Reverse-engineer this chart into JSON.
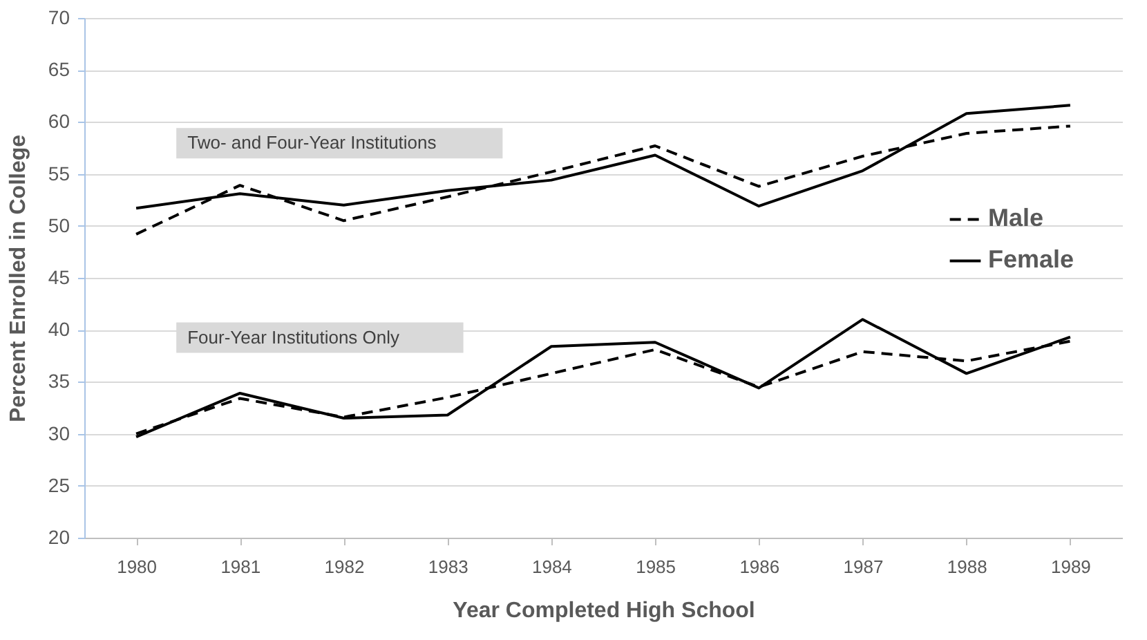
{
  "chart_data": {
    "type": "line",
    "xlabel": "Year Completed High School",
    "ylabel": "Percent Enrolled in College",
    "categories": [
      "1980",
      "1981",
      "1982",
      "1983",
      "1984",
      "1985",
      "1986",
      "1987",
      "1988",
      "1989"
    ],
    "series": [
      {
        "name": "Male",
        "color": "#000000",
        "line_style": "dashed",
        "values": [
          49.2,
          53.9,
          50.5,
          52.8,
          55.2,
          57.7,
          53.8,
          56.7,
          58.9,
          59.6
        ]
      },
      {
        "name": "Female",
        "color": "#000000",
        "line_style": "solid",
        "values": [
          51.7,
          53.1,
          52.0,
          53.4,
          54.4,
          56.8,
          51.9,
          55.3,
          60.8,
          61.6
        ]
      },
      {
        "color": "#000000",
        "line_style": "dashed",
        "values": [
          30.0,
          33.4,
          31.6,
          33.5,
          35.8,
          38.1,
          34.5,
          37.9,
          37.0,
          38.9
        ]
      },
      {
        "color": "#000000",
        "line_style": "solid",
        "values": [
          29.7,
          33.9,
          31.5,
          31.8,
          38.4,
          38.8,
          34.4,
          41.0,
          35.8,
          39.3
        ]
      }
    ],
    "annotations": [
      "Two- and Four-Year Institutions",
      "Four-Year Institutions Only"
    ],
    "ylim": [
      20,
      70
    ],
    "yticks": [
      20,
      25,
      30,
      35,
      40,
      45,
      50,
      55,
      60,
      65,
      70
    ],
    "grid": "y",
    "legend": "right",
    "marker": "none"
  }
}
